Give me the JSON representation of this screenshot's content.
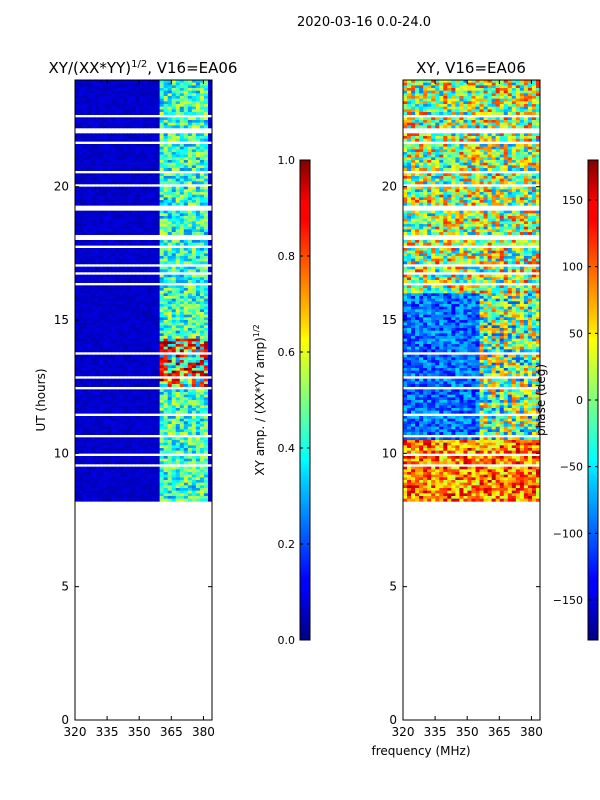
{
  "suptitle": "2020-03-16 0.0-24.0",
  "shared_xlabel": "frequency (MHz)",
  "chart_data": [
    {
      "type": "heatmap",
      "title_main": "XY/(XX*YY)",
      "title_sup": "1/2",
      "title_tail": ", V16=EA06",
      "ylabel": "UT (hours)",
      "xlim": [
        320,
        384
      ],
      "ylim": [
        0,
        24
      ],
      "xticks": [
        320,
        335,
        350,
        365,
        380
      ],
      "xtick_labels": [
        "320",
        "335",
        "350",
        "365",
        "380"
      ],
      "yticks": [
        0,
        5,
        10,
        15,
        20
      ],
      "ytick_labels": [
        "0",
        "5",
        "10",
        "15",
        "20"
      ],
      "data_start_hour": 8.2,
      "data_end_hour": 24,
      "signal_band_mhz": [
        360,
        382
      ],
      "colorbar": {
        "label_main": "XY amp. / (XX*YY amp)",
        "label_sup": "1/2",
        "range": [
          0.0,
          1.0
        ],
        "ticks": [
          0.0,
          0.2,
          0.4,
          0.6,
          0.8,
          1.0
        ],
        "tick_labels": [
          "0.0",
          "0.2",
          "0.4",
          "0.6",
          "0.8",
          "1.0"
        ]
      }
    },
    {
      "type": "heatmap",
      "title": "XY, V16=EA06",
      "xlim": [
        320,
        384
      ],
      "ylim": [
        0,
        24
      ],
      "xticks": [
        320,
        335,
        350,
        365,
        380
      ],
      "xtick_labels": [
        "320",
        "335",
        "350",
        "365",
        "380"
      ],
      "yticks": [
        0,
        5,
        10,
        15,
        20
      ],
      "ytick_labels": [
        "0",
        "5",
        "10",
        "15",
        "20"
      ],
      "data_start_hour": 8.2,
      "data_end_hour": 24,
      "colorbar": {
        "label": "phase (deg)",
        "range": [
          -180,
          180
        ],
        "ticks": [
          -150,
          -100,
          -50,
          0,
          50,
          100,
          150
        ],
        "tick_labels": [
          "−150",
          "−100",
          "−50",
          "0",
          "50",
          "100",
          "150"
        ]
      }
    }
  ]
}
